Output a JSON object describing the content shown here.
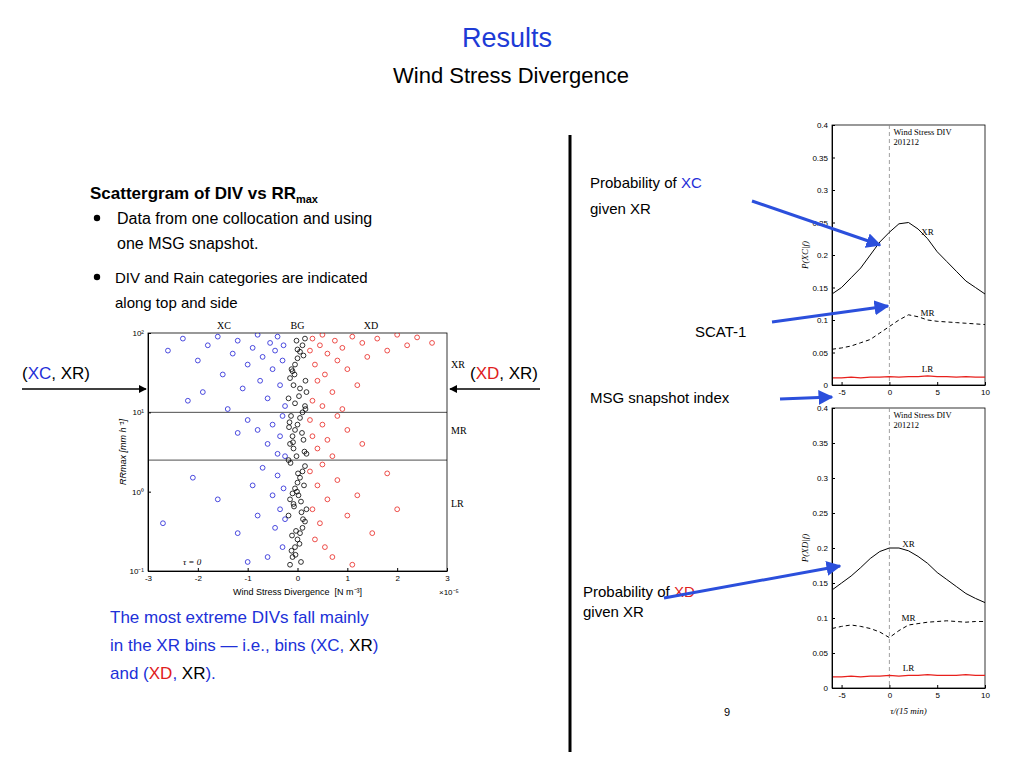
{
  "slide": {
    "title": "Results",
    "subtitle": "Wind Stress Divergence",
    "heading": {
      "text": "Scattergram of DIV vs RR",
      "subscript": "max"
    },
    "bullets": [
      [
        "Data from one collocation and using",
        "one MSG snapshot."
      ],
      [
        "DIV and Rain categories are indicated",
        "along top and side"
      ]
    ],
    "left_label": [
      [
        {
          "text": "("
        },
        {
          "text": "XC",
          "color": "#1f2fd8"
        },
        {
          "text": ", XR)"
        }
      ]
    ],
    "right_label": [
      [
        {
          "text": "("
        },
        {
          "text": "XD",
          "color": "#e0201c"
        },
        {
          "text": ", XR)"
        }
      ]
    ],
    "note": {
      "color": "#2030d8",
      "lines": [
        [
          {
            "text": "The most extreme DIVs fall mainly"
          }
        ],
        [
          {
            "text": "in the XR bins — i.e., bins ("
          },
          {
            "text": "XC"
          },
          {
            "text": ", "
          },
          {
            "text": "XR",
            "color": "#000000"
          },
          {
            "text": ")"
          }
        ],
        [
          {
            "text": "and ("
          },
          {
            "text": "XD",
            "color": "#e0201c"
          },
          {
            "text": ", "
          },
          {
            "text": "XR",
            "color": "#000000"
          },
          {
            "text": ")."
          }
        ]
      ]
    },
    "prob_xc": [
      [
        {
          "text": "Probability of "
        },
        {
          "text": "XC",
          "color": "#1f2fd8"
        }
      ],
      [
        {
          "text": "given XR"
        }
      ]
    ],
    "prob_xd": [
      [
        {
          "text": "Probability of "
        },
        {
          "text": "XD",
          "color": "#e0201c"
        }
      ],
      [
        {
          "text": "given XR"
        }
      ]
    ],
    "scat_label": "SCAT-1",
    "axis_note": "MSG snapshot index",
    "page_number": 9
  },
  "chart_data": [
    {
      "type": "scatter",
      "xlabel": "Wind Stress Divergence  [N m⁻³]",
      "x_scale_label": "×10⁻⁵",
      "ylabel": "RRmax [mm h⁻¹]",
      "log": "y",
      "xlim": [
        -3,
        3
      ],
      "xticks": [
        -3,
        -2,
        -1,
        0,
        1,
        2,
        3
      ],
      "ylim": [
        0.1,
        100
      ],
      "yticks": [
        {
          "value": 0.1,
          "label": "10⁻¹"
        },
        {
          "value": 1,
          "label": "10⁰"
        },
        {
          "value": 10,
          "label": "10¹"
        },
        {
          "value": 100,
          "label": "10²"
        }
      ],
      "marker": "circle",
      "hlines": [
        10,
        2.5
      ],
      "rain_categories": [
        "XR",
        "MR",
        "LR"
      ],
      "annotations": [
        {
          "text": "τ = 0",
          "x": -2.3,
          "y": 0.12
        }
      ],
      "series": [
        {
          "name": "XC",
          "color": "#1f1fd6",
          "x": [
            -2.6,
            -2.3,
            -2.0,
            -1.8,
            -1.6,
            -1.5,
            -1.3,
            -1.2,
            -1.1,
            -1.0,
            -0.9,
            -0.8,
            -0.75,
            -0.7,
            -0.6,
            -0.55,
            -0.5,
            -0.45,
            -0.4,
            -0.35,
            -0.3,
            -0.28,
            -0.25,
            -1.9,
            -2.2,
            -1.4,
            -1.0,
            -0.8,
            -0.6,
            -0.5,
            -0.4,
            -0.35,
            -0.3,
            -0.25,
            -1.2,
            -2.1,
            -1.6,
            -1.2,
            -0.9,
            -0.8,
            -0.7,
            -0.6,
            -0.5,
            -0.45,
            -0.4,
            -0.35,
            -0.3,
            -0.28,
            -0.25,
            -1.0,
            -2.7
          ],
          "values": [
            60,
            85,
            45,
            70,
            90,
            30,
            55,
            80,
            20,
            40,
            65,
            95,
            25,
            50,
            15,
            75,
            35,
            60,
            90,
            22,
            45,
            70,
            12,
            18,
            14,
            11,
            8,
            6,
            4,
            7,
            3,
            5,
            9,
            2.8,
            5.5,
            1.5,
            0.8,
            0.3,
            1.2,
            0.5,
            2,
            0.15,
            0.9,
            0.35,
            1.6,
            0.6,
            0.2,
            1.1,
            0.45,
            0.13,
            0.4
          ]
        },
        {
          "name": "BG",
          "color": "#000000",
          "x": [
            -0.15,
            -0.1,
            -0.05,
            0,
            0.05,
            0.1,
            0.15,
            -0.18,
            0.18,
            -0.08,
            -0.15,
            -0.1,
            -0.05,
            0,
            0.05,
            0.1,
            0.15,
            -0.18,
            0.18,
            -0.08,
            -0.15,
            -0.1,
            -0.05,
            0,
            0.05,
            0.1,
            0.15,
            -0.18,
            0.18,
            -0.08,
            -0.15,
            -0.1,
            -0.05,
            0,
            0.05,
            0.1,
            0.15,
            -0.12,
            0.08,
            0.02,
            -0.02,
            0.12,
            -0.13,
            0.03,
            -0.06,
            0.07,
            -0.03,
            0.13,
            -0.17,
            0.16,
            -0.04,
            0.04,
            -0.11,
            0.11,
            -0.07,
            0.07,
            -0.01,
            0.01,
            -0.14,
            0.14,
            -0.09,
            0.09,
            -0.16,
            0.16,
            -0.05,
            0.05,
            -0.12,
            0.12,
            0,
            -0.02
          ],
          "values": [
            0.12,
            0.15,
            0.2,
            0.25,
            0.3,
            0.35,
            0.42,
            0.5,
            0.6,
            0.7,
            0.8,
            0.95,
            1.1,
            1.3,
            1.5,
            1.8,
            2.1,
            2.5,
            3,
            3.5,
            4,
            5,
            6,
            7,
            8.5,
            10,
            12,
            15,
            18,
            22,
            27,
            33,
            40,
            48,
            58,
            70,
            85,
            0.18,
            0.55,
            0.9,
            2.8,
            4.5,
            9,
            16,
            30,
            0.13,
            0.32,
            1.2,
            6.5,
            25,
            0.16,
            0.22,
            0.28,
            0.45,
            0.65,
            0.75,
            1.0,
            1.7,
            2.3,
            3.2,
            4.2,
            5.5,
            7.5,
            11,
            13,
            20,
            35,
            52,
            62,
            80
          ]
        },
        {
          "name": "XD",
          "color": "#e8231e",
          "x": [
            0.25,
            0.3,
            0.35,
            0.4,
            0.45,
            0.5,
            0.55,
            0.6,
            0.7,
            0.75,
            0.8,
            0.9,
            1.0,
            1.1,
            1.2,
            1.3,
            1.4,
            1.6,
            1.8,
            2.0,
            2.2,
            2.4,
            2.7,
            0.3,
            0.5,
            0.9,
            0.25,
            0.3,
            0.4,
            0.5,
            0.6,
            0.7,
            0.8,
            1.0,
            1.3,
            0.25,
            0.3,
            0.35,
            0.4,
            0.45,
            0.5,
            0.6,
            0.7,
            0.8,
            1.0,
            1.2,
            1.5,
            1.8,
            2.0,
            1.1,
            0.55
          ],
          "values": [
            60,
            85,
            40,
            25,
            70,
            95,
            30,
            55,
            18,
            80,
            45,
            65,
            35,
            90,
            22,
            75,
            50,
            85,
            60,
            95,
            70,
            88,
            75,
            14,
            12,
            11,
            8,
            5,
            3.5,
            7,
            4.5,
            2.8,
            9,
            6,
            4,
            1.8,
            0.6,
            0.25,
            1.2,
            0.4,
            2.2,
            0.8,
            0.15,
            1.4,
            0.5,
            0.9,
            0.3,
            1.7,
            0.6,
            0.12,
            0.2
          ]
        }
      ]
    },
    {
      "type": "line",
      "ylabel": "P(XC|f)",
      "annotation": [
        "Wind Stress DIV",
        "201212"
      ],
      "vline": 0,
      "x": [
        -6,
        -5,
        -4,
        -3,
        -2,
        -1,
        0,
        1,
        2,
        3,
        4,
        5,
        6,
        7,
        8,
        9,
        10
      ],
      "xlim": [
        -6,
        10
      ],
      "xticks": [
        -5,
        0,
        5,
        10
      ],
      "ylim": [
        0,
        0.4
      ],
      "yticks": [
        0,
        0.05,
        0.1,
        0.15,
        0.2,
        0.25,
        0.3,
        0.35,
        0.4
      ],
      "series": [
        {
          "name": "XR",
          "color": "#000000",
          "line_style": "solid",
          "values": [
            0.14,
            0.15,
            0.165,
            0.18,
            0.2,
            0.22,
            0.235,
            0.248,
            0.25,
            0.24,
            0.225,
            0.205,
            0.19,
            0.175,
            0.16,
            0.15,
            0.14
          ]
        },
        {
          "name": "MR",
          "color": "#000000",
          "line_style": "dashed",
          "values": [
            0.055,
            0.057,
            0.06,
            0.065,
            0.07,
            0.08,
            0.09,
            0.1,
            0.108,
            0.105,
            0.1,
            0.098,
            0.097,
            0.096,
            0.095,
            0.094,
            0.093
          ]
        },
        {
          "name": "LR",
          "color": "#e8201c",
          "line_style": "solid",
          "values": [
            0.011,
            0.011,
            0.012,
            0.011,
            0.012,
            0.012,
            0.013,
            0.012,
            0.013,
            0.013,
            0.014,
            0.013,
            0.013,
            0.012,
            0.013,
            0.012,
            0.012
          ]
        }
      ]
    },
    {
      "type": "line",
      "ylabel": "P(XD|f)",
      "xlabel": "τ/(15 min)",
      "annotation": [
        "Wind Stress DIV",
        "201212"
      ],
      "vline": 0,
      "x": [
        -6,
        -5,
        -4,
        -3,
        -2,
        -1,
        0,
        1,
        2,
        3,
        4,
        5,
        6,
        7,
        8,
        9,
        10
      ],
      "xlim": [
        -6,
        10
      ],
      "xticks": [
        -5,
        0,
        5,
        10
      ],
      "ylim": [
        0,
        0.4
      ],
      "yticks": [
        0,
        0.05,
        0.1,
        0.15,
        0.2,
        0.25,
        0.3,
        0.35,
        0.4
      ],
      "series": [
        {
          "name": "XR",
          "color": "#000000",
          "line_style": "solid",
          "values": [
            0.14,
            0.15,
            0.16,
            0.172,
            0.185,
            0.195,
            0.2,
            0.2,
            0.196,
            0.188,
            0.178,
            0.165,
            0.155,
            0.145,
            0.135,
            0.128,
            0.122
          ]
        },
        {
          "name": "MR",
          "color": "#000000",
          "line_style": "dashed",
          "values": [
            0.085,
            0.088,
            0.09,
            0.088,
            0.085,
            0.08,
            0.072,
            0.082,
            0.09,
            0.092,
            0.094,
            0.095,
            0.096,
            0.095,
            0.094,
            0.095,
            0.095
          ]
        },
        {
          "name": "LR",
          "color": "#e8201c",
          "line_style": "solid",
          "values": [
            0.016,
            0.016,
            0.017,
            0.016,
            0.017,
            0.017,
            0.018,
            0.017,
            0.018,
            0.018,
            0.019,
            0.018,
            0.018,
            0.018,
            0.019,
            0.018,
            0.018
          ]
        }
      ]
    }
  ]
}
